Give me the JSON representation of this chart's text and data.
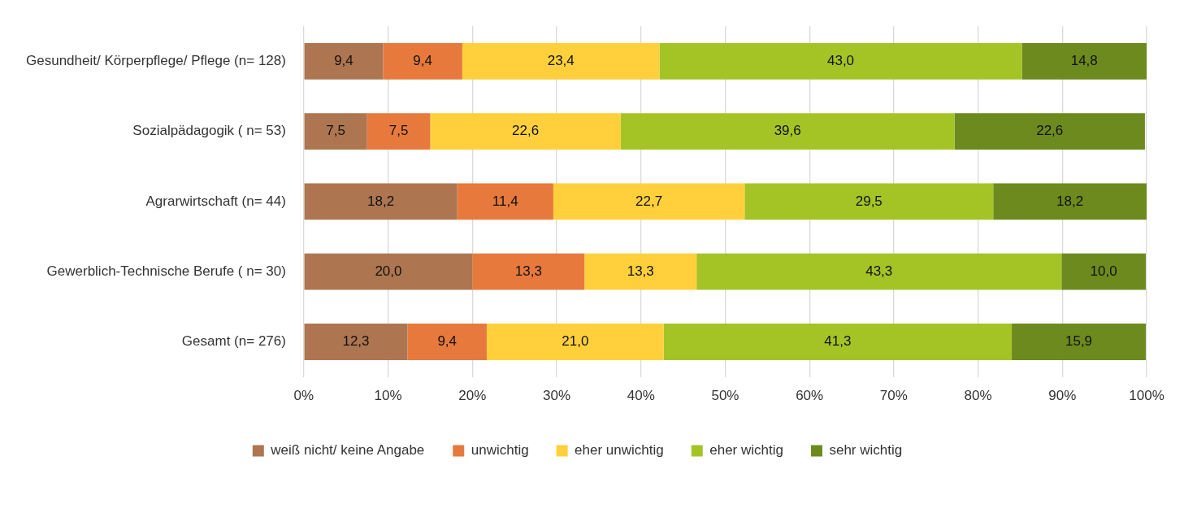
{
  "chart_data": {
    "type": "bar",
    "orientation": "horizontal",
    "stacked": true,
    "categories": [
      "Gesundheit/ Körperpflege/ Pflege (n= 128)",
      "Sozialpädagogik ( n= 53)",
      "Agrarwirtschaft (n= 44)",
      "Gewerblich-Technische Berufe ( n= 30)",
      "Gesamt (n= 276)"
    ],
    "series": [
      {
        "name": "weiß nicht/ keine Angabe",
        "color": "#ad7650",
        "values": [
          9.4,
          7.5,
          18.2,
          20.0,
          12.3
        ],
        "value_labels": [
          "9,4",
          "7,5",
          "18,2",
          "20,0",
          "12,3"
        ]
      },
      {
        "name": "unwichtig",
        "color": "#e7793d",
        "values": [
          9.4,
          7.5,
          11.4,
          13.3,
          9.4
        ],
        "value_labels": [
          "9,4",
          "7,5",
          "11,4",
          "13,3",
          "9,4"
        ]
      },
      {
        "name": "eher unwichtig",
        "color": "#ffd03b",
        "values": [
          23.4,
          22.6,
          22.7,
          13.3,
          21.0
        ],
        "value_labels": [
          "23,4",
          "22,6",
          "22,7",
          "13,3",
          "21,0"
        ]
      },
      {
        "name": "eher wichtig",
        "color": "#a4c426",
        "values": [
          43.0,
          39.6,
          29.5,
          43.3,
          41.3
        ],
        "value_labels": [
          "43,0",
          "39,6",
          "29,5",
          "43,3",
          "41,3"
        ]
      },
      {
        "name": "sehr wichtig",
        "color": "#6c8a1d",
        "values": [
          14.8,
          22.6,
          18.2,
          10.0,
          15.9
        ],
        "value_labels": [
          "14,8",
          "22,6",
          "18,2",
          "10,0",
          "15,9"
        ]
      }
    ],
    "xlim": [
      0,
      100
    ],
    "xticks": [
      {
        "value": 0,
        "label": "0%"
      },
      {
        "value": 10,
        "label": "10%"
      },
      {
        "value": 20,
        "label": "20%"
      },
      {
        "value": 30,
        "label": "30%"
      },
      {
        "value": 40,
        "label": "40%"
      },
      {
        "value": 50,
        "label": "50%"
      },
      {
        "value": 60,
        "label": "60%"
      },
      {
        "value": 70,
        "label": "70%"
      },
      {
        "value": 80,
        "label": "80%"
      },
      {
        "value": 90,
        "label": "90%"
      },
      {
        "value": 100,
        "label": "100%"
      }
    ],
    "grid": "x",
    "legend": "bottom"
  }
}
